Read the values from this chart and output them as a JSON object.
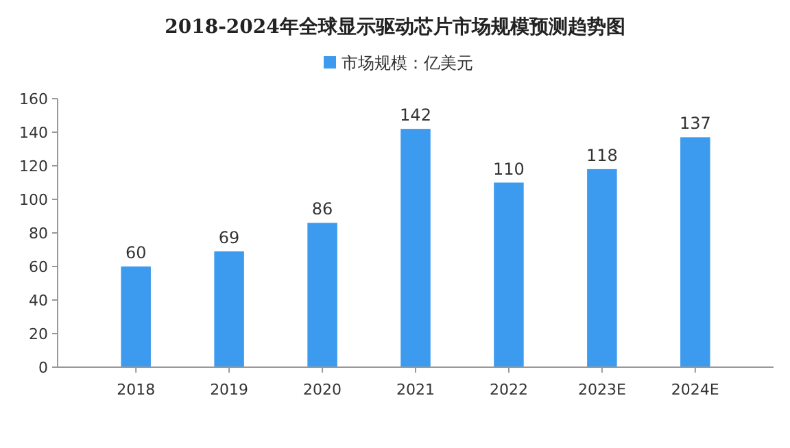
{
  "chart_data": {
    "type": "bar",
    "title": "2018-2024年全球显示驱动芯片市场规模预测趋势图",
    "categories": [
      "2018",
      "2019",
      "2020",
      "2021",
      "2022",
      "2023E",
      "2024E"
    ],
    "series": [
      {
        "name": "市场规模：亿美元",
        "color": "#3d9bef",
        "values": [
          60,
          69,
          86,
          142,
          110,
          118,
          137
        ]
      }
    ],
    "ylim": [
      0,
      160
    ],
    "yticks": [
      0,
      20,
      40,
      60,
      80,
      100,
      120,
      140,
      160
    ],
    "grid": false,
    "legend": "top",
    "data_labels": true
  }
}
